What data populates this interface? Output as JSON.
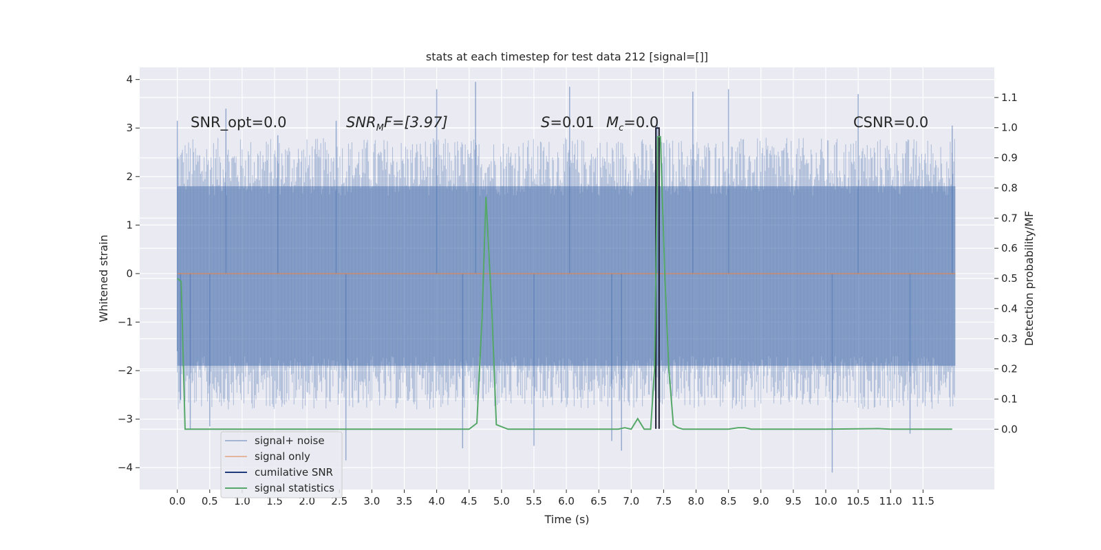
{
  "chart_data": {
    "type": "line",
    "title": "stats at each timestep for test data 212 [signal=[]]",
    "xlabel": "Time (s)",
    "ylabel": "Whitened strain",
    "y2label": "Detection probability/MF",
    "xlim": [
      -0.58,
      12.6
    ],
    "ylim": [
      -4.45,
      4.25
    ],
    "y2lim": [
      -0.2,
      1.2
    ],
    "xticks": [
      "0.0",
      "0.5",
      "1.0",
      "1.5",
      "2.0",
      "2.5",
      "3.0",
      "3.5",
      "4.0",
      "4.5",
      "5.0",
      "5.5",
      "6.0",
      "6.5",
      "7.0",
      "7.5",
      "8.0",
      "8.5",
      "9.0",
      "9.5",
      "10.0",
      "10.5",
      "11.0",
      "11.5"
    ],
    "yticks": [
      "4",
      "3",
      "2",
      "1",
      "0",
      "−1",
      "−2",
      "−3",
      "−4"
    ],
    "y2ticks": [
      "1.1",
      "1.0",
      "0.9",
      "0.8",
      "0.7",
      "0.6",
      "0.5",
      "0.4",
      "0.3",
      "0.2",
      "0.1",
      "0.0"
    ],
    "grid": true,
    "legend_position": "lower-left",
    "colors": {
      "background": "#eaeaf2",
      "grid": "#ffffff",
      "noise": "#4c72b0",
      "signal_only": "#dd8452",
      "cumulative_snr": "#1f3a7a",
      "signal_statistics": "#55a868"
    },
    "annotations": {
      "snr_opt": "SNR_opt=0.0",
      "snr_mf_main": "SNR",
      "snr_mf_sub": "M",
      "snr_mf_rest": "F=[3.97]",
      "s_var": "S",
      "s_val": "=0.01",
      "mc_var": "M",
      "mc_sub": "c",
      "mc_val": "=0.0",
      "csnr": "CSNR=0.0"
    },
    "series": [
      {
        "name": "signal+ noise",
        "style": "dense-noise",
        "x_range": [
          0.0,
          12.0
        ],
        "band": [
          -1.9,
          1.8
        ],
        "spikes": [
          {
            "x": 0.0,
            "y": 3.15
          },
          {
            "x": 0.0,
            "y": -1.6
          },
          {
            "x": 0.05,
            "y": -2.6
          },
          {
            "x": 0.2,
            "y": -3.2
          },
          {
            "x": 0.5,
            "y": -3.15
          },
          {
            "x": 0.75,
            "y": 3.4
          },
          {
            "x": 1.55,
            "y": 2.85
          },
          {
            "x": 2.45,
            "y": 3.15
          },
          {
            "x": 2.6,
            "y": -3.85
          },
          {
            "x": 4.0,
            "y": 3.8
          },
          {
            "x": 4.4,
            "y": -3.6
          },
          {
            "x": 4.6,
            "y": 3.95
          },
          {
            "x": 5.5,
            "y": -3.55
          },
          {
            "x": 6.05,
            "y": 3.85
          },
          {
            "x": 6.7,
            "y": -3.45
          },
          {
            "x": 6.85,
            "y": -3.65
          },
          {
            "x": 7.4,
            "y": 3.2
          },
          {
            "x": 7.95,
            "y": 3.75
          },
          {
            "x": 8.5,
            "y": 3.8
          },
          {
            "x": 10.1,
            "y": -4.1
          },
          {
            "x": 10.5,
            "y": 3.7
          },
          {
            "x": 11.3,
            "y": -3.3
          },
          {
            "x": 11.95,
            "y": 3.05
          }
        ]
      },
      {
        "name": "signal only",
        "x": [
          0.0,
          12.0
        ],
        "y": [
          0.0,
          0.0
        ]
      },
      {
        "name": "cumilative SNR",
        "x": [
          7.38,
          7.38,
          7.43,
          7.43
        ],
        "y": [
          -3.2,
          3.0,
          3.0,
          -3.2
        ]
      },
      {
        "name": "signal statistics",
        "axis": "right",
        "x": [
          0.0,
          0.06,
          0.12,
          0.25,
          0.5,
          1.0,
          2.0,
          3.0,
          4.0,
          4.5,
          4.62,
          4.7,
          4.76,
          4.85,
          4.92,
          5.1,
          6.0,
          6.8,
          6.9,
          7.0,
          7.1,
          7.2,
          7.3,
          7.36,
          7.41,
          7.45,
          7.52,
          7.58,
          7.65,
          7.72,
          7.8,
          8.0,
          8.5,
          8.65,
          8.75,
          8.85,
          9.0,
          10.0,
          10.8,
          11.0,
          11.95
        ],
        "y": [
          0.5,
          0.49,
          0.0,
          0.0,
          0.0,
          0.0,
          0.0,
          0.0,
          0.0,
          0.0,
          0.02,
          0.37,
          0.77,
          0.4,
          0.015,
          0.0,
          0.0,
          0.0,
          0.005,
          0.0,
          0.035,
          0.0,
          0.0,
          0.2,
          0.97,
          0.97,
          0.5,
          0.2,
          0.015,
          0.005,
          0.0,
          0.0,
          0.0,
          0.005,
          0.005,
          0.0,
          0.0,
          0.0,
          0.002,
          0.0,
          0.0
        ]
      }
    ]
  }
}
